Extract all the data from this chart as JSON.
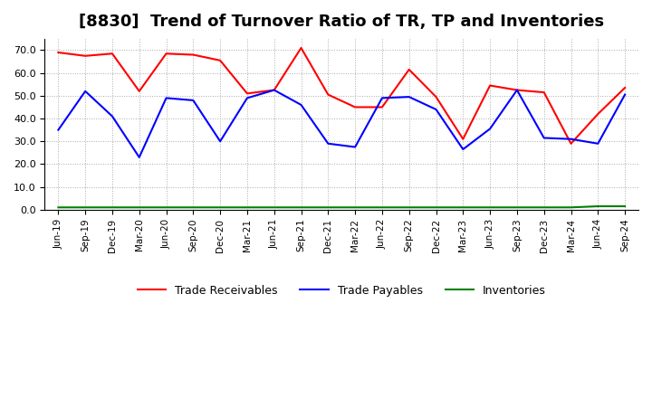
{
  "title": "[8830]  Trend of Turnover Ratio of TR, TP and Inventories",
  "x_labels": [
    "Jun-19",
    "Sep-19",
    "Dec-19",
    "Mar-20",
    "Jun-20",
    "Sep-20",
    "Dec-20",
    "Mar-21",
    "Jun-21",
    "Sep-21",
    "Dec-21",
    "Mar-22",
    "Jun-22",
    "Sep-22",
    "Dec-22",
    "Mar-23",
    "Jun-23",
    "Sep-23",
    "Dec-23",
    "Mar-24",
    "Jun-24",
    "Sep-24"
  ],
  "trade_receivables": [
    69.0,
    67.5,
    68.5,
    52.0,
    68.5,
    68.0,
    65.5,
    51.0,
    52.5,
    71.0,
    50.5,
    45.0,
    45.0,
    61.5,
    49.5,
    31.0,
    54.5,
    52.5,
    51.5,
    29.0,
    42.0,
    53.5
  ],
  "trade_payables": [
    35.0,
    52.0,
    41.0,
    23.0,
    49.0,
    48.0,
    30.0,
    49.0,
    52.5,
    46.0,
    29.0,
    27.5,
    49.0,
    49.5,
    44.0,
    26.5,
    35.5,
    52.5,
    31.5,
    31.0,
    29.0,
    50.5
  ],
  "inventories": [
    1.0,
    1.0,
    1.0,
    1.0,
    1.0,
    1.0,
    1.0,
    1.0,
    1.0,
    1.0,
    1.0,
    1.0,
    1.0,
    1.0,
    1.0,
    1.0,
    1.0,
    1.0,
    1.0,
    1.0,
    1.5,
    1.5
  ],
  "ylim": [
    0.0,
    75.0
  ],
  "yticks": [
    0.0,
    10.0,
    20.0,
    30.0,
    40.0,
    50.0,
    60.0,
    70.0
  ],
  "tr_color": "#ff0000",
  "tp_color": "#0000ff",
  "inv_color": "#008000",
  "background_color": "#ffffff",
  "grid_color": "#aaaaaa",
  "title_fontsize": 13,
  "legend_labels": [
    "Trade Receivables",
    "Trade Payables",
    "Inventories"
  ]
}
